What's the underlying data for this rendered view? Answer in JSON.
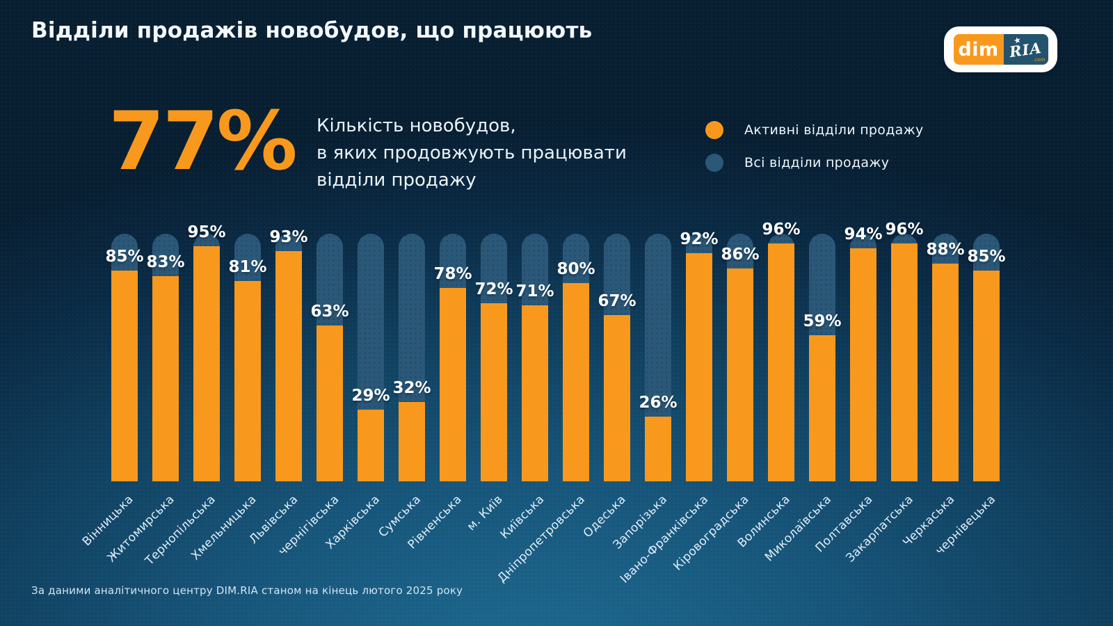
{
  "title": "Відділи продажів новобудов, що працюють",
  "logo": {
    "dim": "dim",
    "ria": "RIA",
    "com": ".com"
  },
  "highlight": {
    "value": "77%",
    "description_lines": [
      "Кількість новобудов,",
      "в яких продовжують працювати",
      "відділи продажу"
    ]
  },
  "legend": [
    {
      "label": "Активні відділи продажу",
      "color": "#f8991d"
    },
    {
      "label": "Всі відділи продажу",
      "color": "#2b5878"
    }
  ],
  "footer": "За даними аналітичного центру DIM.RIA станом на кінець лютого 2025 року",
  "chart_data": {
    "type": "bar",
    "title": "Відділи продажів новобудов, що працюють",
    "categories": [
      "Вінницька",
      "Житомирська",
      "Тернопільська",
      "Хмельницька",
      "Львівська",
      "чернігівська",
      "Харківська",
      "Сумська",
      "Рівненська",
      "м. Київ",
      "Київська",
      "Дніпропетровська",
      "Одеська",
      "Запорізька",
      "Івано-Франківська",
      "Кіровоградська",
      "Волинська",
      "Миколаївська",
      "Полтавська",
      "Закарпатська",
      "Черкаська",
      "чернівецька"
    ],
    "series": [
      {
        "name": "Активні відділи продажу",
        "color": "#f8991d",
        "values": [
          85,
          83,
          95,
          81,
          93,
          63,
          29,
          32,
          78,
          72,
          71,
          80,
          67,
          26,
          92,
          86,
          96,
          59,
          94,
          96,
          88,
          85
        ]
      },
      {
        "name": "Всі відділи продажу",
        "color": "#2b5878",
        "values": [
          100,
          100,
          100,
          100,
          100,
          100,
          100,
          100,
          100,
          100,
          100,
          100,
          100,
          100,
          100,
          100,
          100,
          100,
          100,
          100,
          100,
          100
        ]
      }
    ],
    "ylim": [
      0,
      100
    ],
    "value_suffix": "%",
    "grid": false,
    "legend_position": "top-right"
  }
}
